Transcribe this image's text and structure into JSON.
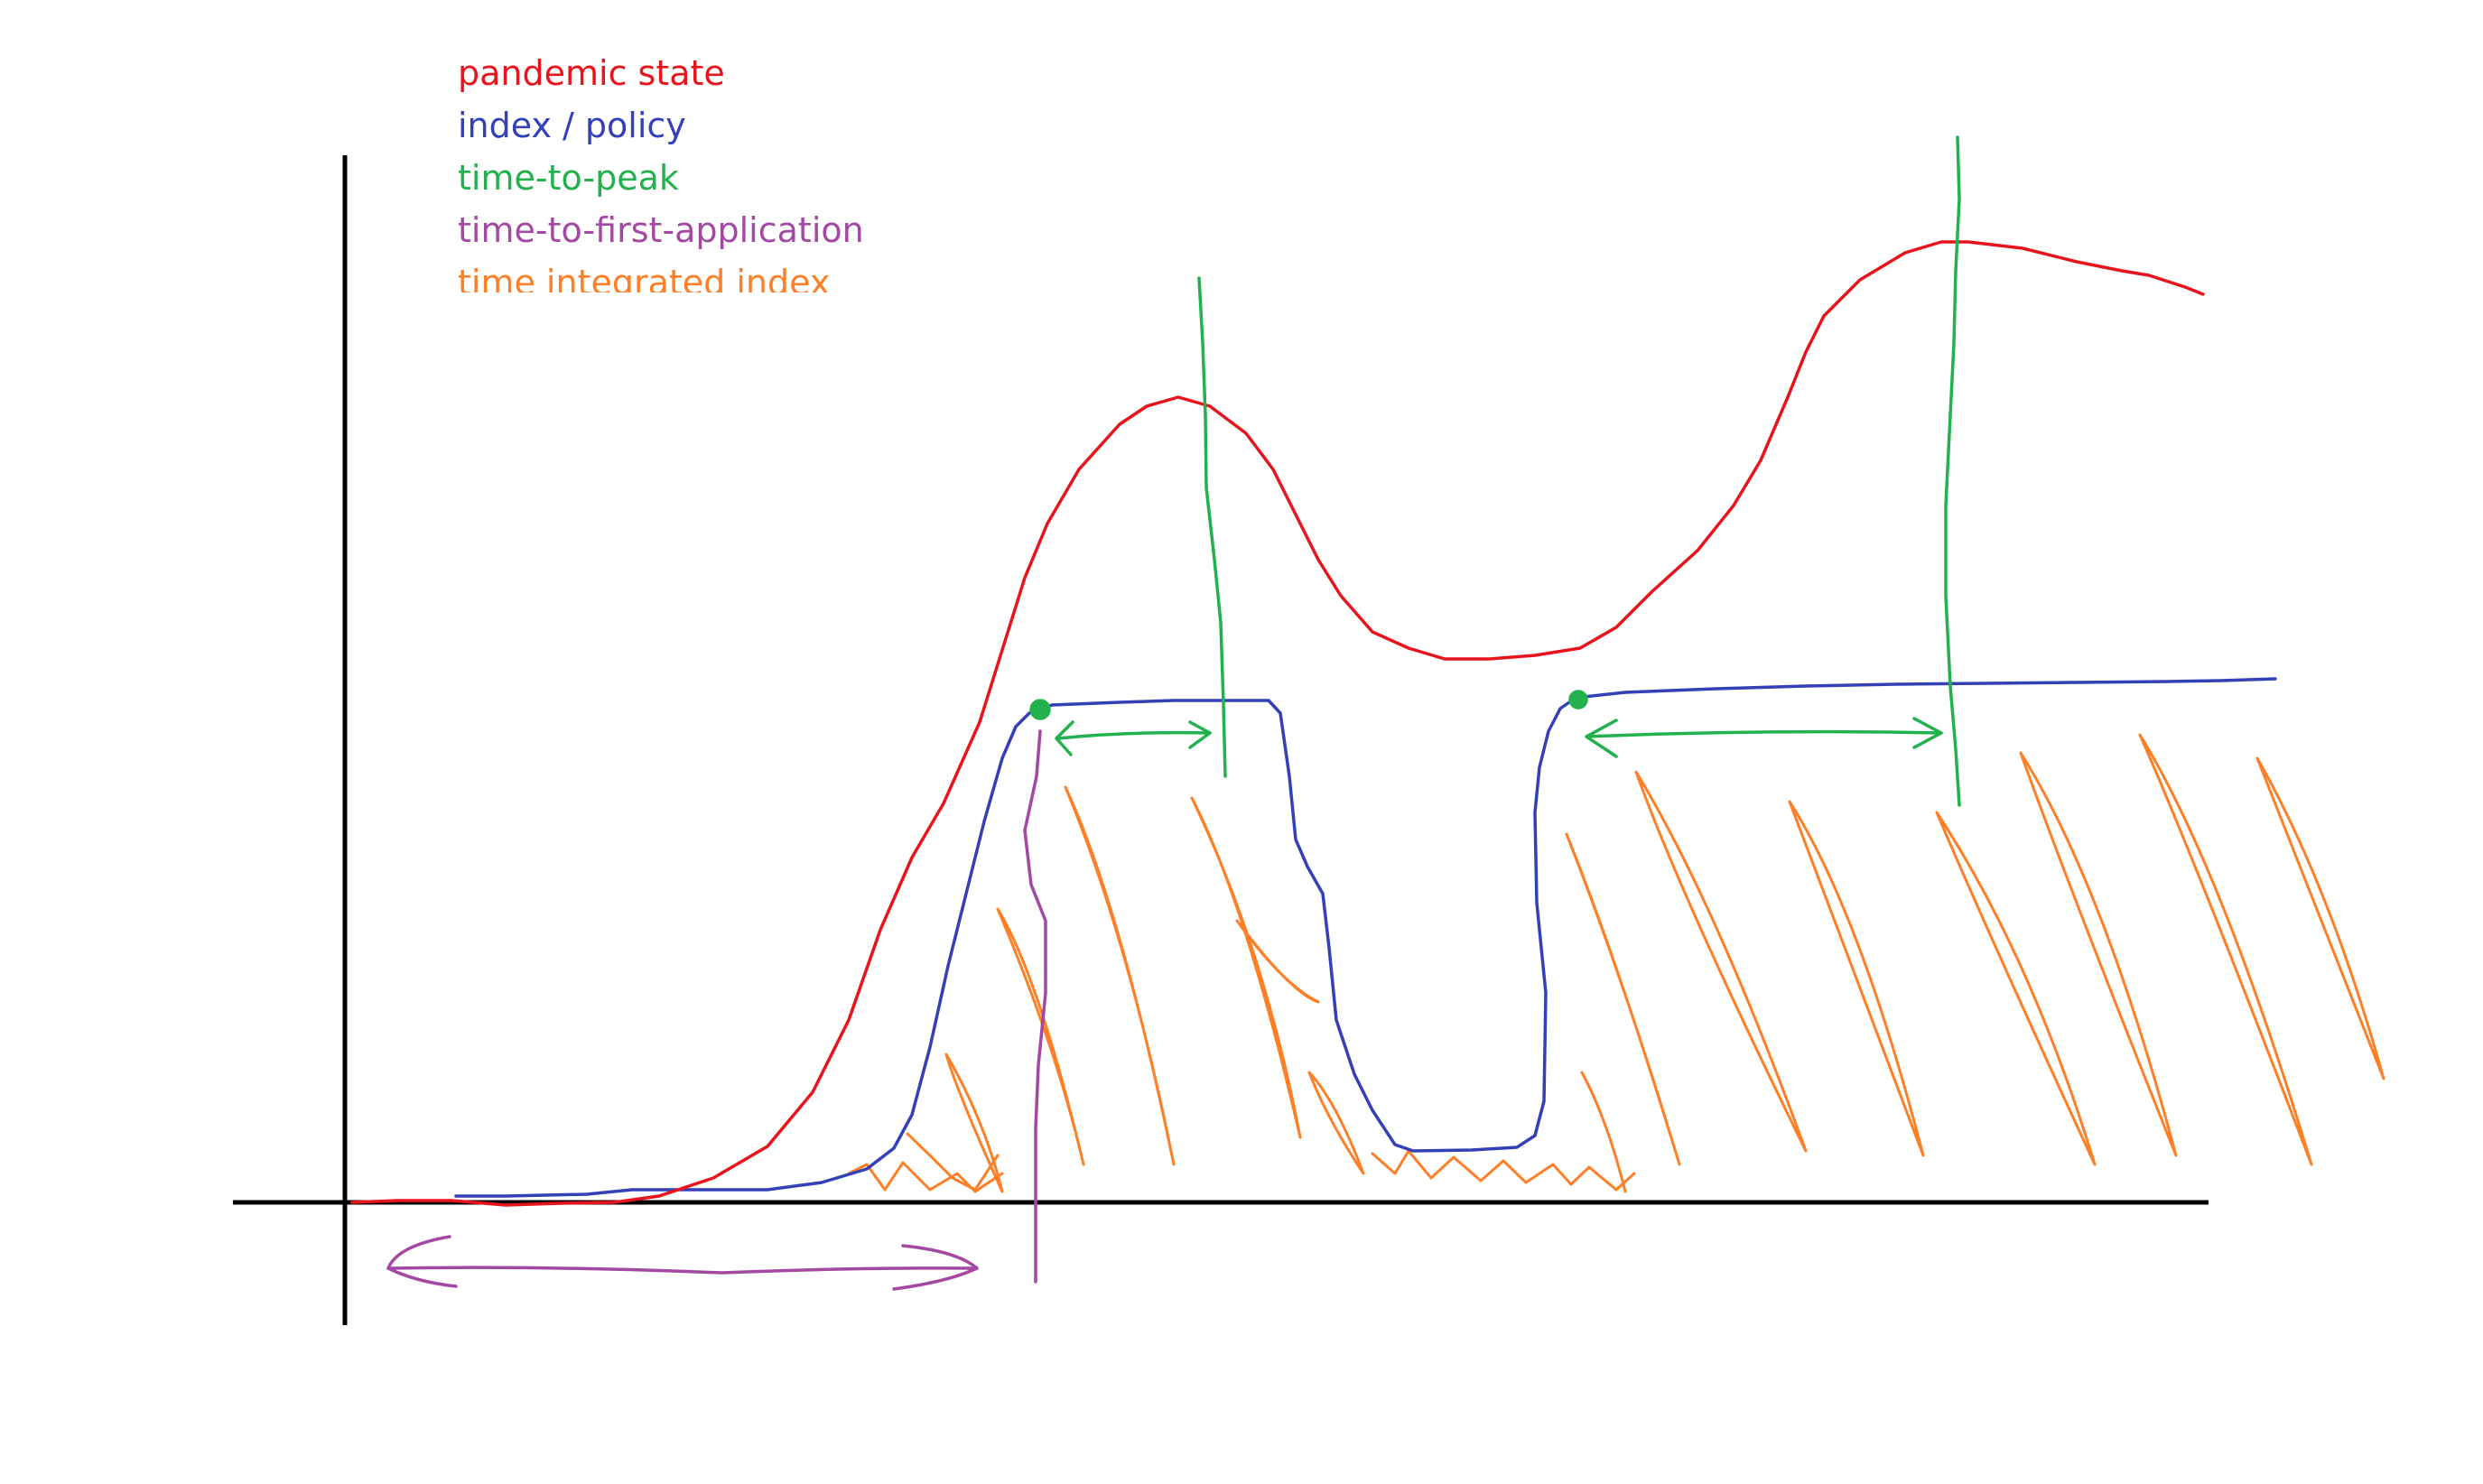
{
  "legend": {
    "items": [
      {
        "label": "pandemic state",
        "color": "#e8141c"
      },
      {
        "label": "index / policy",
        "color": "#3340b8"
      },
      {
        "label": "time-to-peak",
        "color": "#22b14c"
      },
      {
        "label": "time-to-first-application",
        "color": "#a349a4"
      },
      {
        "label": "time integrated index",
        "color": "#ff7f27"
      }
    ]
  },
  "colors": {
    "axes": "#000000",
    "pandemic_state": "#e8141c",
    "index_policy": "#3340b8",
    "time_to_peak": "#22b14c",
    "time_to_first_application": "#a349a4",
    "time_integrated_index": "#ff7f27"
  }
}
